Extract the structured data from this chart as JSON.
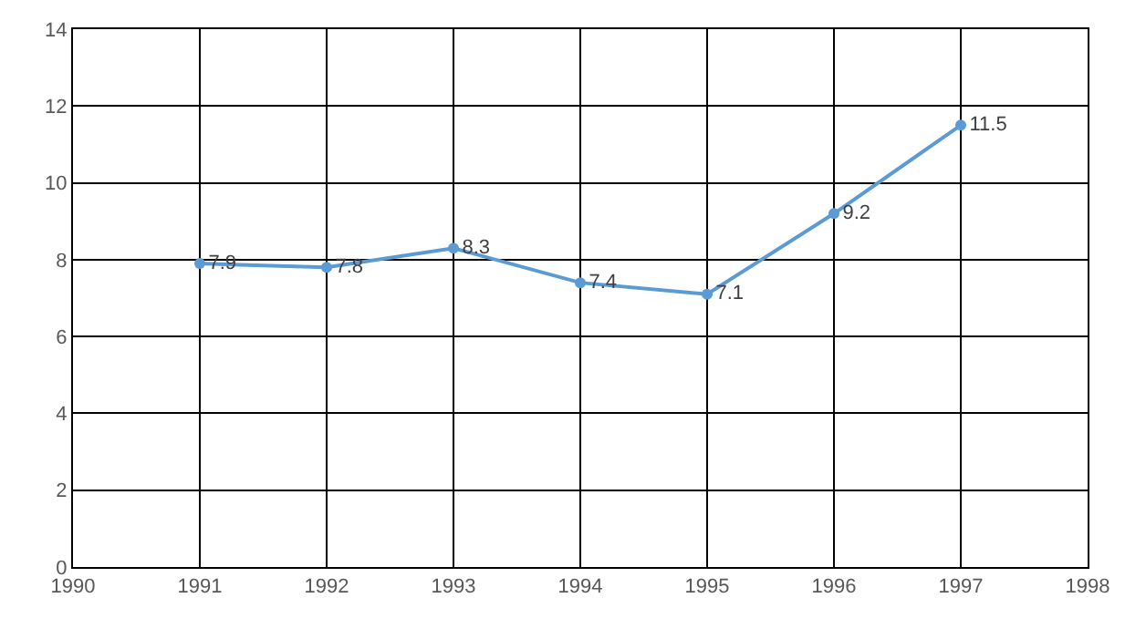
{
  "chart_data": {
    "type": "line",
    "x": [
      1991,
      1992,
      1993,
      1994,
      1995,
      1996,
      1997
    ],
    "series": [
      {
        "color": "#5b9bd5",
        "values": [
          7.9,
          7.8,
          8.3,
          7.4,
          7.1,
          9.2,
          11.5
        ]
      }
    ],
    "xlim": [
      1990,
      1998
    ],
    "xticks": [
      1990,
      1991,
      1992,
      1993,
      1994,
      1995,
      1996,
      1997,
      1998
    ],
    "ylim": [
      0,
      14
    ],
    "yticks": [
      0,
      2,
      4,
      6,
      8,
      10,
      12,
      14
    ],
    "grid": true,
    "marker": "circle",
    "line_style": "solid",
    "data_labels": true
  }
}
